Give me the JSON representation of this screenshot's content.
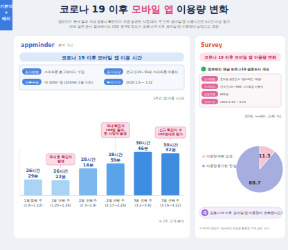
{
  "header": {
    "tab": "기분석\n+\n베이",
    "title_parts": [
      "코로나 19 이후 ",
      "모바일 앱",
      " 이용량 변화"
    ],
    "subtitle": [
      "앱마인드 분석 결과 국내 코로나 확진자가 처음 발생한 시점 대비 주 단위 모바일 앱 이용시간은 4시간 이상 증가",
      "자체 설문 조사 결과에서도 10명 중 9명 정도가 코로나19 이후 모바일 앱 이용량이 늘었다고 응답"
    ]
  },
  "panels": [
    {
      "brand": "appminder",
      "tag": "분석 개요",
      "info": [
        {
          "label": "조사방법",
          "text": "스마트폰 로그데이터 수집"
        },
        {
          "label": "조사대상",
          "text": "전국 만20~59세 스마트폰 이용자"
        },
        {
          "label": "표본규모",
          "text": "약 100만 명 (2020년 1월 기준)"
        },
        {
          "label": "분석기간",
          "text": "2020.1.6 ~ 3.22"
        }
      ]
    },
    {
      "brand": "Survey",
      "heading": "엠브레인 패널 코로나19 설문조사 개요",
      "info": [
        {
          "label": "조사방법",
          "text": "모바일 설문조사 (엠브레인 패널)"
        },
        {
          "label": "조사대상",
          "text": "전국 만20~59세 스마트폰 이용자"
        },
        {
          "label": "표본규모",
          "text": "601명"
        },
        {
          "label": "조사기간",
          "text": "2020.3.19 ~ 3.23"
        }
      ],
      "question_mark": "Q",
      "question": "코로나19 이후 모바일 앱 이용량이 변화했나요?",
      "footnote": "※ NICE디앤알의 엠브레인 패널을 활용한 자체 설문 조사"
    }
  ],
  "chart_data": [
    {
      "type": "bar",
      "title": "코로나 19 이후 모바일 앱 이용 시간",
      "subtitle": "[주간 앱 이용 시간]",
      "categories": [
        "1월 둘째 주\n(1.6~1.12)",
        "1월 넷째 주\n(1.20~1.26)",
        "2월 첫째 주\n(2.3~2.9)",
        "2월 셋째 주\n(2.17~2.23)",
        "3월 첫째 주\n(3.2~3.8)",
        "3월 셋째 주\n(3.16~3.22)"
      ],
      "values": [
        26.48,
        26.37,
        28.23,
        28.98,
        30.77,
        30.53
      ],
      "value_labels": [
        "26시간\n29분",
        "26시간\n22분",
        "28시간\n14분",
        "28시간\n59분",
        "30시간\n46분",
        "30시간\n32분"
      ],
      "colors": [
        "#a9d4f5",
        "#a9d4f5",
        "#7ab8ee",
        "#5aa3e8",
        "#3d8ce0",
        "#3d8ce0"
      ],
      "ylim": [
        24,
        31.5
      ],
      "yticks": [],
      "tick_labels": "x",
      "data_labels": true,
      "annotations": [
        {
          "text": "국내 첫 확진자\n발생",
          "category": "1월 넷째 주\n(1.20~1.26)"
        },
        {
          "text": "국내 확진자\n100명 돌파,\n첫 사망자 발생",
          "category": "2월 셋째 주\n(2.17~2.23)"
        },
        {
          "text": "신규 확진자 수\n100명대로 증가",
          "category": "3월 셋째 주\n(3.16~3.22)"
        }
      ],
      "note": "※ 2주 간격 분석"
    },
    {
      "type": "pie",
      "title": "코로나 19 이후 모바일 앱 이용량 변화",
      "subtitle": "[전체, n=601, 단위: %]",
      "categories": [
        "이용량 변화 없음",
        "이용량 증가한 편 임"
      ],
      "values": [
        11.3,
        88.7
      ],
      "colors": [
        "#f6c5d2",
        "#a5aede"
      ],
      "data_labels": true,
      "legend": "left"
    }
  ]
}
